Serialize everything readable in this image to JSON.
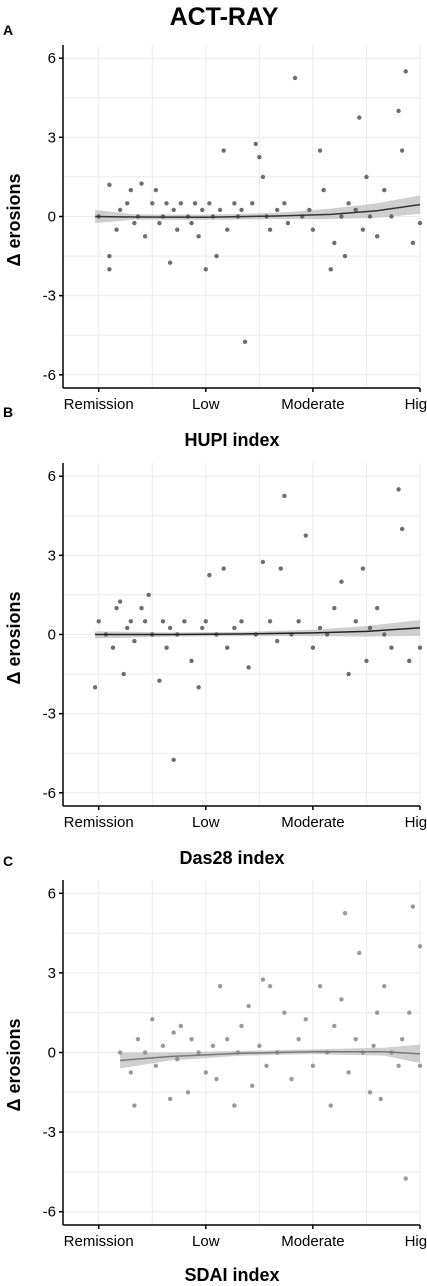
{
  "title": "ACT-RAY",
  "panels": [
    {
      "letter": "A",
      "xtitle": "HUPI index"
    },
    {
      "letter": "B",
      "xtitle": "Das28 index"
    },
    {
      "letter": "C",
      "xtitle": "SDAI index"
    }
  ],
  "colors": {
    "points": [
      "#555555",
      "#555555",
      "#888888"
    ],
    "trend": [
      "#333333",
      "#222222",
      "#777777"
    ],
    "band": "#bfbfbf",
    "grid": "#ebebeb",
    "axis": "#000000"
  },
  "chart_data": [
    {
      "type": "scatter",
      "title": "",
      "xlabel": "HUPI index",
      "ylabel": "Δ erosions",
      "xlim": [
        0,
        10
      ],
      "ylim": [
        -6.5,
        6.5
      ],
      "x_ticks": [
        {
          "value": 1,
          "label": "Remission"
        },
        {
          "value": 4,
          "label": "Low"
        },
        {
          "value": 7,
          "label": "Moderate"
        },
        {
          "value": 10,
          "label": "High"
        }
      ],
      "y_ticks": [
        -6,
        -3,
        0,
        3,
        6
      ],
      "grid": true,
      "trend": [
        [
          0.9,
          0.0
        ],
        [
          2,
          -0.02
        ],
        [
          4,
          -0.03
        ],
        [
          6,
          0.02
        ],
        [
          7.5,
          0.08
        ],
        [
          8.8,
          0.22
        ],
        [
          10,
          0.45
        ]
      ],
      "band": [
        [
          0.9,
          -0.25,
          0.25
        ],
        [
          2,
          -0.12,
          0.08
        ],
        [
          4,
          -0.13,
          0.07
        ],
        [
          6,
          -0.1,
          0.14
        ],
        [
          7.5,
          -0.1,
          0.3
        ],
        [
          8.8,
          -0.05,
          0.5
        ],
        [
          10,
          0.1,
          0.8
        ]
      ],
      "points": [
        [
          1.0,
          0.0
        ],
        [
          1.3,
          1.2
        ],
        [
          1.3,
          -1.5
        ],
        [
          1.3,
          -2.0
        ],
        [
          1.5,
          -0.5
        ],
        [
          1.6,
          0.25
        ],
        [
          1.8,
          0.5
        ],
        [
          1.9,
          1.0
        ],
        [
          2.0,
          -0.25
        ],
        [
          2.1,
          0.0
        ],
        [
          2.2,
          1.25
        ],
        [
          2.3,
          -0.75
        ],
        [
          2.5,
          0.5
        ],
        [
          2.6,
          1.0
        ],
        [
          2.7,
          -0.25
        ],
        [
          2.8,
          0.0
        ],
        [
          2.9,
          0.5
        ],
        [
          3.0,
          -1.75
        ],
        [
          3.1,
          0.25
        ],
        [
          3.2,
          -0.5
        ],
        [
          3.3,
          0.5
        ],
        [
          3.5,
          0.0
        ],
        [
          3.6,
          -0.25
        ],
        [
          3.7,
          0.5
        ],
        [
          3.8,
          -0.75
        ],
        [
          3.9,
          0.25
        ],
        [
          4.0,
          -2.0
        ],
        [
          4.1,
          0.5
        ],
        [
          4.2,
          0.0
        ],
        [
          4.3,
          -1.5
        ],
        [
          4.4,
          0.25
        ],
        [
          4.5,
          2.5
        ],
        [
          4.6,
          -0.5
        ],
        [
          4.8,
          0.5
        ],
        [
          4.9,
          0.0
        ],
        [
          5.0,
          0.25
        ],
        [
          5.1,
          -4.75
        ],
        [
          5.3,
          0.5
        ],
        [
          5.4,
          2.75
        ],
        [
          5.5,
          2.25
        ],
        [
          5.6,
          1.5
        ],
        [
          5.7,
          0.0
        ],
        [
          5.8,
          -0.5
        ],
        [
          6.0,
          0.25
        ],
        [
          6.2,
          0.5
        ],
        [
          6.3,
          -0.25
        ],
        [
          6.5,
          5.25
        ],
        [
          6.7,
          0.0
        ],
        [
          6.9,
          0.25
        ],
        [
          7.0,
          -0.5
        ],
        [
          7.2,
          2.5
        ],
        [
          7.3,
          1.0
        ],
        [
          7.5,
          -2.0
        ],
        [
          7.6,
          -1.0
        ],
        [
          7.8,
          0.0
        ],
        [
          7.9,
          -1.5
        ],
        [
          8.0,
          0.5
        ],
        [
          8.2,
          0.25
        ],
        [
          8.3,
          3.75
        ],
        [
          8.4,
          -0.5
        ],
        [
          8.5,
          1.5
        ],
        [
          8.6,
          0.0
        ],
        [
          8.8,
          -0.75
        ],
        [
          9.0,
          1.0
        ],
        [
          9.2,
          0.0
        ],
        [
          9.4,
          4.0
        ],
        [
          9.5,
          2.5
        ],
        [
          9.6,
          5.5
        ],
        [
          9.8,
          -1.0
        ],
        [
          10.0,
          -0.25
        ]
      ]
    },
    {
      "type": "scatter",
      "title": "",
      "xlabel": "Das28 index",
      "ylabel": "Δ erosions",
      "xlim": [
        0,
        10
      ],
      "ylim": [
        -6.5,
        6.5
      ],
      "x_ticks": [
        {
          "value": 1,
          "label": "Remission"
        },
        {
          "value": 4,
          "label": "Low"
        },
        {
          "value": 7,
          "label": "Moderate"
        },
        {
          "value": 10,
          "label": "High"
        }
      ],
      "y_ticks": [
        -6,
        -3,
        0,
        3,
        6
      ],
      "grid": true,
      "trend": [
        [
          0.9,
          0.0
        ],
        [
          3,
          0.0
        ],
        [
          5,
          0.02
        ],
        [
          7,
          0.06
        ],
        [
          8.5,
          0.12
        ],
        [
          10,
          0.25
        ]
      ],
      "band": [
        [
          0.9,
          -0.15,
          0.12
        ],
        [
          3,
          -0.08,
          0.08
        ],
        [
          5,
          -0.06,
          0.1
        ],
        [
          7,
          -0.06,
          0.18
        ],
        [
          8.5,
          -0.08,
          0.32
        ],
        [
          10,
          -0.05,
          0.55
        ]
      ],
      "points": [
        [
          0.9,
          -2.0
        ],
        [
          1.0,
          0.5
        ],
        [
          1.2,
          0.0
        ],
        [
          1.4,
          -0.5
        ],
        [
          1.5,
          1.0
        ],
        [
          1.6,
          1.25
        ],
        [
          1.7,
          -1.5
        ],
        [
          1.8,
          0.25
        ],
        [
          1.9,
          0.5
        ],
        [
          2.0,
          -0.25
        ],
        [
          2.2,
          1.0
        ],
        [
          2.3,
          0.5
        ],
        [
          2.4,
          1.5
        ],
        [
          2.5,
          0.0
        ],
        [
          2.7,
          -1.75
        ],
        [
          2.8,
          0.5
        ],
        [
          2.9,
          -0.5
        ],
        [
          3.0,
          0.25
        ],
        [
          3.1,
          -4.75
        ],
        [
          3.2,
          0.0
        ],
        [
          3.4,
          0.5
        ],
        [
          3.6,
          -1.0
        ],
        [
          3.8,
          -2.0
        ],
        [
          3.9,
          0.25
        ],
        [
          4.0,
          0.5
        ],
        [
          4.1,
          2.25
        ],
        [
          4.3,
          0.0
        ],
        [
          4.5,
          2.5
        ],
        [
          4.6,
          -0.5
        ],
        [
          4.8,
          0.25
        ],
        [
          5.0,
          0.5
        ],
        [
          5.2,
          -1.25
        ],
        [
          5.4,
          0.0
        ],
        [
          5.6,
          2.75
        ],
        [
          5.8,
          0.5
        ],
        [
          6.0,
          -0.25
        ],
        [
          6.1,
          2.5
        ],
        [
          6.2,
          5.25
        ],
        [
          6.4,
          0.0
        ],
        [
          6.6,
          0.5
        ],
        [
          6.8,
          3.75
        ],
        [
          7.0,
          -0.5
        ],
        [
          7.2,
          0.25
        ],
        [
          7.4,
          0.0
        ],
        [
          7.6,
          1.0
        ],
        [
          7.8,
          2.0
        ],
        [
          8.0,
          -1.5
        ],
        [
          8.2,
          0.5
        ],
        [
          8.4,
          2.5
        ],
        [
          8.5,
          -1.0
        ],
        [
          8.6,
          0.25
        ],
        [
          8.8,
          1.0
        ],
        [
          9.0,
          0.0
        ],
        [
          9.2,
          -0.5
        ],
        [
          9.4,
          5.5
        ],
        [
          9.5,
          4.0
        ],
        [
          9.7,
          -1.0
        ],
        [
          10.0,
          -0.5
        ]
      ]
    },
    {
      "type": "scatter",
      "title": "",
      "xlabel": "SDAI index",
      "ylabel": "Δ erosions",
      "xlim": [
        0,
        10
      ],
      "ylim": [
        -6.5,
        6.5
      ],
      "x_ticks": [
        {
          "value": 1,
          "label": "Remission"
        },
        {
          "value": 4,
          "label": "Low"
        },
        {
          "value": 7,
          "label": "Moderate"
        },
        {
          "value": 10,
          "label": "High"
        }
      ],
      "y_ticks": [
        -6,
        -3,
        0,
        3,
        6
      ],
      "grid": true,
      "trend": [
        [
          1.6,
          -0.3
        ],
        [
          3,
          -0.15
        ],
        [
          5,
          -0.03
        ],
        [
          7,
          0.03
        ],
        [
          9,
          0.03
        ],
        [
          10,
          -0.05
        ]
      ],
      "band": [
        [
          1.6,
          -0.6,
          0.0
        ],
        [
          3,
          -0.3,
          0.0
        ],
        [
          5,
          -0.12,
          0.06
        ],
        [
          7,
          -0.06,
          0.12
        ],
        [
          9,
          -0.12,
          0.18
        ],
        [
          10,
          -0.4,
          0.3
        ]
      ],
      "points": [
        [
          1.6,
          0.0
        ],
        [
          1.9,
          -0.75
        ],
        [
          2.0,
          -2.0
        ],
        [
          2.1,
          0.5
        ],
        [
          2.3,
          0.0
        ],
        [
          2.5,
          1.25
        ],
        [
          2.6,
          -0.5
        ],
        [
          2.8,
          0.25
        ],
        [
          3.0,
          -1.75
        ],
        [
          3.1,
          0.75
        ],
        [
          3.2,
          -0.25
        ],
        [
          3.3,
          1.0
        ],
        [
          3.5,
          -1.5
        ],
        [
          3.6,
          0.5
        ],
        [
          3.8,
          0.0
        ],
        [
          4.0,
          -0.75
        ],
        [
          4.2,
          0.25
        ],
        [
          4.3,
          -1.0
        ],
        [
          4.4,
          2.5
        ],
        [
          4.6,
          0.5
        ],
        [
          4.8,
          -2.0
        ],
        [
          4.9,
          0.0
        ],
        [
          5.0,
          1.0
        ],
        [
          5.2,
          1.75
        ],
        [
          5.3,
          -1.25
        ],
        [
          5.5,
          0.25
        ],
        [
          5.6,
          2.75
        ],
        [
          5.7,
          -0.5
        ],
        [
          5.8,
          2.5
        ],
        [
          6.0,
          0.0
        ],
        [
          6.2,
          1.5
        ],
        [
          6.4,
          -1.0
        ],
        [
          6.6,
          0.5
        ],
        [
          6.8,
          1.25
        ],
        [
          7.0,
          -0.5
        ],
        [
          7.2,
          2.5
        ],
        [
          7.4,
          0.0
        ],
        [
          7.5,
          -2.0
        ],
        [
          7.6,
          1.0
        ],
        [
          7.8,
          2.0
        ],
        [
          7.9,
          5.25
        ],
        [
          8.0,
          -0.75
        ],
        [
          8.2,
          0.5
        ],
        [
          8.3,
          3.75
        ],
        [
          8.4,
          0.0
        ],
        [
          8.6,
          -1.5
        ],
        [
          8.7,
          0.25
        ],
        [
          8.8,
          1.5
        ],
        [
          8.9,
          -1.75
        ],
        [
          9.0,
          2.5
        ],
        [
          9.2,
          0.0
        ],
        [
          9.4,
          -0.5
        ],
        [
          9.5,
          0.5
        ],
        [
          9.6,
          -4.75
        ],
        [
          9.7,
          1.5
        ],
        [
          9.8,
          5.5
        ],
        [
          10.0,
          4.0
        ],
        [
          10.0,
          -0.5
        ]
      ]
    }
  ]
}
